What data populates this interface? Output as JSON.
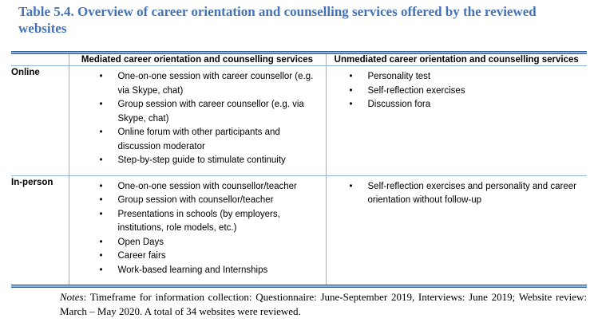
{
  "title": "Table 5.4. Overview of career orientation and counselling services offered by the reviewed websites",
  "table": {
    "headers": {
      "mediated": "Mediated career orientation and counselling services",
      "unmediated": "Unmediated career orientation and counselling services"
    },
    "rows": [
      {
        "label": "Online",
        "mediated": [
          "One-on-one session with career counsellor (e.g. via Skype, chat)",
          "Group session with career counsellor (e.g. via Skype, chat)",
          "Online forum with other participants and discussion moderator",
          "Step-by-step guide to stimulate continuity"
        ],
        "unmediated": [
          "Personality test",
          "Self-reflection exercises",
          "Discussion fora"
        ]
      },
      {
        "label": "In-person",
        "mediated": [
          "One-on-one session with counsellor/teacher",
          "Group session with counsellor/teacher",
          "Presentations in schools (by employers, institutions, role models, etc.)",
          "Open Days",
          "Career fairs",
          "Work-based learning and Internships"
        ],
        "unmediated": [
          "Self-reflection exercises and personality and career orientation without follow-up"
        ]
      }
    ]
  },
  "notes": {
    "label": "Notes",
    "text": ": Timeframe for information collection: Questionnaire: June-September 2019, Interviews: June 2019; Website review: March – May 2020. A total of 34 websites were reviewed."
  },
  "colors": {
    "title_blue": "#4472B4",
    "thick_border_dark": "#2E5A94",
    "thick_border_light": "#8FB2DC",
    "inner_rule_blue": "#95B3D7",
    "column_rule_gray": "#ABABAB",
    "text": "#000000"
  }
}
